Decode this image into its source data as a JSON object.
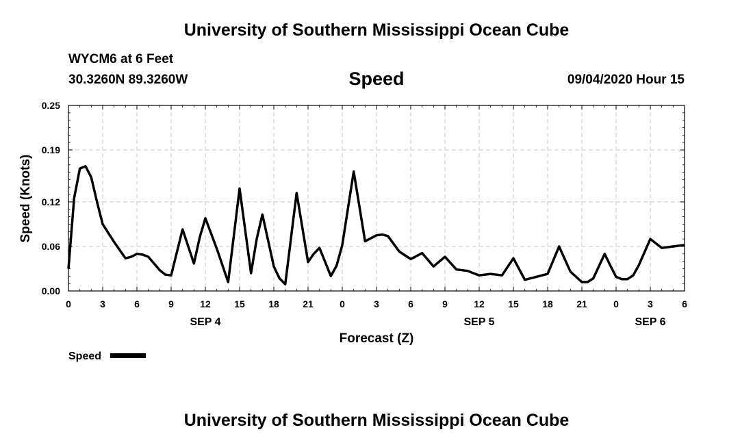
{
  "header": {
    "title_top": "University of Southern Mississippi Ocean Cube",
    "station": "WYCM6 at 6 Feet",
    "coords": "30.3260N 89.3260W",
    "chart_title": "Speed",
    "timestamp": "09/04/2020 Hour 15",
    "title_bottom": "University of Southern Mississippi Ocean Cube"
  },
  "chart_data": {
    "type": "line",
    "title": "Speed",
    "xlabel": "Forecast (Z)",
    "ylabel": "Speed (Knots)",
    "xlim": [
      0,
      54
    ],
    "ylim": [
      0,
      0.25
    ],
    "yticks": [
      0,
      0.06,
      0.12,
      0.19,
      0.25
    ],
    "ytick_labels": [
      "0.00",
      "0.06",
      "0.12",
      "0.19",
      "0.25"
    ],
    "xticks": [
      0,
      3,
      6,
      9,
      12,
      15,
      18,
      21,
      24,
      27,
      30,
      33,
      36,
      39,
      42,
      45,
      48,
      51,
      54
    ],
    "xtick_labels": [
      "0",
      "3",
      "6",
      "9",
      "12",
      "15",
      "18",
      "21",
      "0",
      "3",
      "6",
      "9",
      "12",
      "15",
      "18",
      "21",
      "0",
      "3",
      "6"
    ],
    "date_labels": [
      {
        "x": 12,
        "label": "SEP 4"
      },
      {
        "x": 36,
        "label": "SEP 5"
      },
      {
        "x": 51,
        "label": "SEP 6"
      }
    ],
    "grid": true,
    "legend_position": "bottom-left",
    "series": [
      {
        "name": "Speed",
        "color": "#000000",
        "x": [
          0,
          0.5,
          1,
          1.5,
          2,
          2.5,
          3,
          4,
          5,
          5.5,
          6,
          6.5,
          7,
          8,
          8.5,
          9,
          10,
          11,
          11.5,
          12,
          13,
          14,
          15,
          16,
          16.5,
          17,
          18,
          18.5,
          19,
          20,
          21,
          21.5,
          22,
          23,
          23.5,
          24,
          25,
          26,
          27,
          27.5,
          28,
          29,
          30,
          31,
          32,
          33,
          34,
          35,
          36,
          37,
          38,
          39,
          40,
          41,
          42,
          43,
          44,
          45,
          45.5,
          46,
          47,
          47.5,
          48,
          48.5,
          49,
          49.5,
          50,
          51,
          52,
          53,
          54
        ],
        "y": [
          0.03,
          0.125,
          0.165,
          0.168,
          0.153,
          0.12,
          0.09,
          0.066,
          0.044,
          0.046,
          0.05,
          0.049,
          0.046,
          0.028,
          0.022,
          0.021,
          0.083,
          0.037,
          0.072,
          0.098,
          0.057,
          0.012,
          0.138,
          0.024,
          0.07,
          0.103,
          0.033,
          0.017,
          0.009,
          0.132,
          0.039,
          0.05,
          0.058,
          0.02,
          0.034,
          0.062,
          0.161,
          0.067,
          0.075,
          0.076,
          0.074,
          0.053,
          0.043,
          0.051,
          0.033,
          0.046,
          0.029,
          0.027,
          0.021,
          0.023,
          0.021,
          0.044,
          0.015,
          0.019,
          0.023,
          0.06,
          0.026,
          0.012,
          0.012,
          0.017,
          0.05,
          0.034,
          0.019,
          0.016,
          0.016,
          0.021,
          0.035,
          0.07,
          0.058,
          0.06,
          0.062
        ]
      }
    ]
  }
}
